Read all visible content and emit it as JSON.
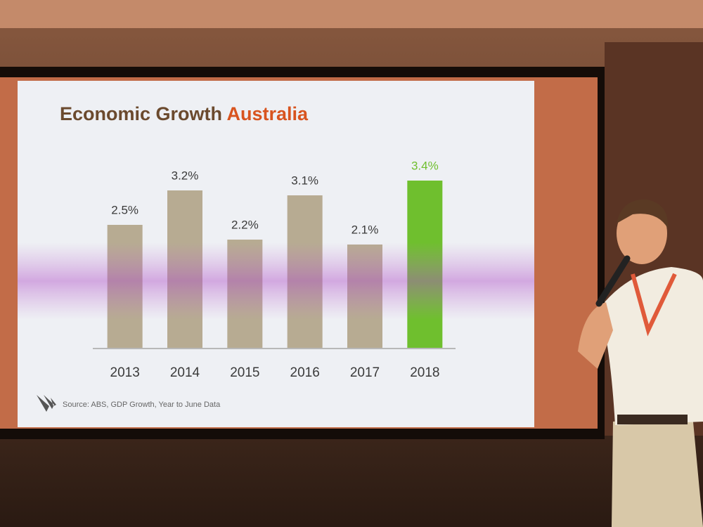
{
  "chart_data": {
    "type": "bar",
    "title_parts": [
      "Economic Growth",
      "Australia"
    ],
    "categories": [
      "2013",
      "2014",
      "2015",
      "2016",
      "2017",
      "2018"
    ],
    "values": [
      2.5,
      3.2,
      2.2,
      3.1,
      2.1,
      3.4
    ],
    "value_labels": [
      "2.5%",
      "3.2%",
      "2.2%",
      "3.1%",
      "2.1%",
      "3.4%"
    ],
    "colors": [
      "#b7ab92",
      "#b7ab92",
      "#b7ab92",
      "#b7ab92",
      "#b7ab92",
      "#6fbf2e"
    ],
    "label_colors": [
      "#3a3a3a",
      "#3a3a3a",
      "#3a3a3a",
      "#3a3a3a",
      "#3a3a3a",
      "#6fbf2e"
    ],
    "source": "Source: ABS, GDP Growth, Year to June Data"
  }
}
